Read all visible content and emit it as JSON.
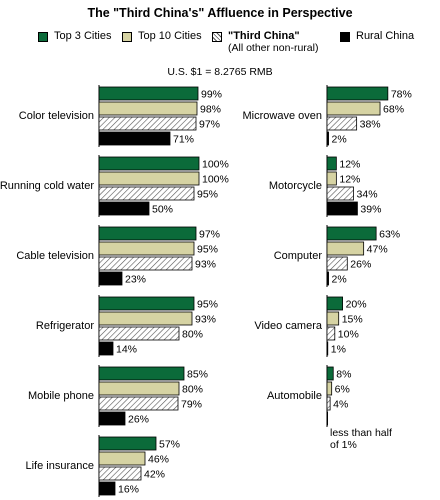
{
  "title": "The \"Third China's\" Affluence in Perspective",
  "exchange_rate": "U.S. $1 = 8.2765 RMB",
  "legend": [
    {
      "label": "Top 3 Cities",
      "sub": "",
      "pattern": "solid",
      "color": "#0b6b3a"
    },
    {
      "label": "Top 10 Cities",
      "sub": "",
      "pattern": "solid",
      "color": "#d6d3a3"
    },
    {
      "label": "\"Third China\"",
      "sub": "(All other non-rural)",
      "pattern": "hatch",
      "color": "#ffffff"
    },
    {
      "label": "Rural China",
      "sub": "",
      "pattern": "solid",
      "color": "#000000"
    }
  ],
  "colors": {
    "top3": "#0b6b3a",
    "top10": "#d6d3a3",
    "third": "#ffffff",
    "hatch": "#555555",
    "rural": "#000000"
  },
  "chart_data": {
    "type": "bar",
    "orientation": "horizontal",
    "scale_max": 100,
    "series": [
      {
        "name": "Top 3 Cities",
        "key": "top3"
      },
      {
        "name": "Top 10 Cities",
        "key": "top10"
      },
      {
        "name": "\"Third China\"",
        "key": "third"
      },
      {
        "name": "Rural China",
        "key": "rural"
      }
    ],
    "categories": [
      {
        "label": "Color television",
        "values": [
          99,
          98,
          97,
          71
        ],
        "value_labels": [
          "99%",
          "98%",
          "97%",
          "71%"
        ]
      },
      {
        "label": "Running cold water",
        "values": [
          100,
          100,
          95,
          50
        ],
        "value_labels": [
          "100%",
          "100%",
          "95%",
          "50%"
        ]
      },
      {
        "label": "Cable television",
        "values": [
          97,
          95,
          93,
          23
        ],
        "value_labels": [
          "97%",
          "95%",
          "93%",
          "23%"
        ]
      },
      {
        "label": "Refrigerator",
        "values": [
          95,
          93,
          80,
          14
        ],
        "value_labels": [
          "95%",
          "93%",
          "80%",
          "14%"
        ]
      },
      {
        "label": "Mobile phone",
        "values": [
          85,
          80,
          79,
          26
        ],
        "value_labels": [
          "85%",
          "80%",
          "79%",
          "26%"
        ]
      },
      {
        "label": "Life insurance",
        "values": [
          57,
          46,
          42,
          16
        ],
        "value_labels": [
          "57%",
          "46%",
          "42%",
          "16%"
        ]
      },
      {
        "label": "Microwave oven",
        "values": [
          78,
          68,
          38,
          2
        ],
        "value_labels": [
          "78%",
          "68%",
          "38%",
          "2%"
        ]
      },
      {
        "label": "Motorcycle",
        "values": [
          12,
          12,
          34,
          39
        ],
        "value_labels": [
          "12%",
          "12%",
          "34%",
          "39%"
        ]
      },
      {
        "label": "Computer",
        "values": [
          63,
          47,
          26,
          2
        ],
        "value_labels": [
          "63%",
          "47%",
          "26%",
          "2%"
        ]
      },
      {
        "label": "Video camera",
        "values": [
          20,
          15,
          10,
          1
        ],
        "value_labels": [
          "20%",
          "15%",
          "10%",
          "1%"
        ]
      },
      {
        "label": "Automobile",
        "values": [
          8,
          6,
          4,
          0.4
        ],
        "value_labels": [
          "8%",
          "6%",
          "4%",
          ""
        ],
        "note": "less than half of 1%"
      }
    ]
  }
}
